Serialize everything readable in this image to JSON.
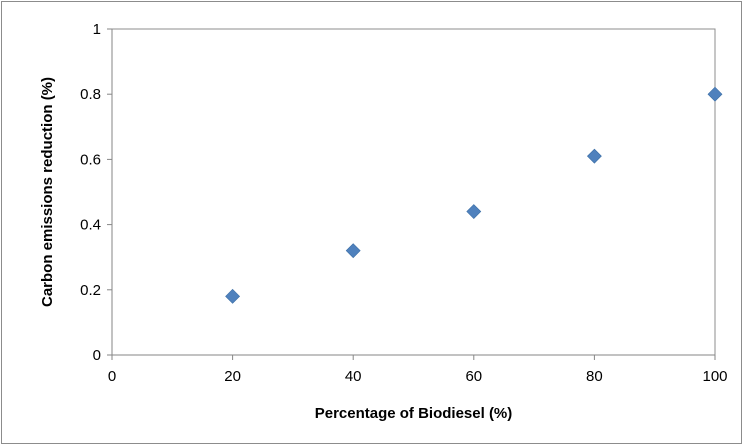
{
  "chart_data": {
    "type": "scatter",
    "title": "",
    "xlabel": "Percentage of Biodiesel (%)",
    "ylabel": "Carbon emissions reduction (%)",
    "xlim": [
      0,
      100
    ],
    "ylim": [
      0,
      1
    ],
    "xticks": [
      0,
      20,
      40,
      60,
      80,
      100
    ],
    "yticks": [
      0,
      0.2,
      0.4,
      0.6,
      0.8,
      1
    ],
    "xtick_labels": [
      "0",
      "20",
      "40",
      "60",
      "80",
      "100"
    ],
    "ytick_labels": [
      "0",
      "0.2",
      "0.4",
      "0.6",
      "0.8",
      "1"
    ],
    "grid": false,
    "legend": "none",
    "series": [
      {
        "marker": "diamond",
        "color": "#4f81bd",
        "x": [
          20,
          40,
          60,
          80,
          100
        ],
        "y": [
          0.18,
          0.32,
          0.44,
          0.61,
          0.8
        ]
      }
    ]
  }
}
